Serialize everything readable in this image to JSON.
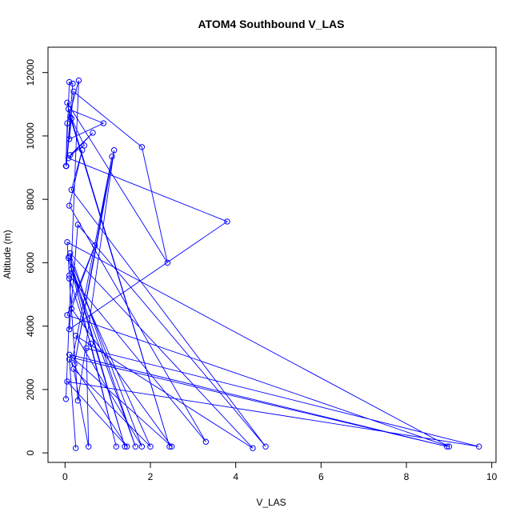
{
  "chart_data": {
    "type": "line",
    "title": "ATOM4 Southbound V_LAS",
    "xlabel": "V_LAS",
    "ylabel": "Altitude (m)",
    "xlim": [
      -0.4,
      10.1
    ],
    "ylim": [
      -300,
      12800
    ],
    "x_ticks": [
      0,
      2,
      4,
      6,
      8,
      10
    ],
    "y_ticks": [
      0,
      2000,
      4000,
      6000,
      8000,
      10000,
      12000
    ],
    "series_color": "#0000ff",
    "series": [
      {
        "x": [
          0.02,
          0.32,
          0.05,
          0.02,
          0.1,
          0.18,
          0.03,
          0.2,
          1.8,
          2.4,
          0.05,
          0.12,
          2.45,
          0.08,
          0.9,
          0.1,
          0.15,
          0.45,
          0.12,
          0.65,
          0.08,
          3.8,
          0.1,
          0.3,
          4.7,
          0.15,
          0.4,
          0.1,
          3.3,
          0.1,
          0.05,
          9.0,
          0.05,
          0.7,
          0.15,
          2.5,
          0.1,
          8.95,
          0.18,
          1.1,
          0.22,
          1.15,
          0.3,
          0.1,
          0.6,
          1.2,
          0.08,
          1.4,
          0.1,
          1.8,
          0.25,
          4.4,
          0.12,
          1.65,
          0.15,
          2.0,
          0.2,
          0.55,
          0.5,
          9.7,
          0.05,
          1.45,
          0.1,
          0.25
        ],
        "y": [
          1700,
          11750,
          10400,
          9050,
          11700,
          11650,
          9050,
          11400,
          9650,
          6000,
          11050,
          10600,
          200,
          10850,
          10400,
          9900,
          10550,
          9700,
          9400,
          10100,
          9300,
          7300,
          3900,
          7200,
          200,
          8300,
          9550,
          7800,
          350,
          5600,
          6650,
          200,
          4350,
          6550,
          4550,
          200,
          3100,
          200,
          3000,
          9350,
          2800,
          9550,
          1650,
          5500,
          3450,
          200,
          6150,
          200,
          6200,
          200,
          3700,
          150,
          6300,
          200,
          5800,
          200,
          2650,
          200,
          3300,
          200,
          2250,
          200,
          2950,
          150
        ]
      }
    ]
  }
}
